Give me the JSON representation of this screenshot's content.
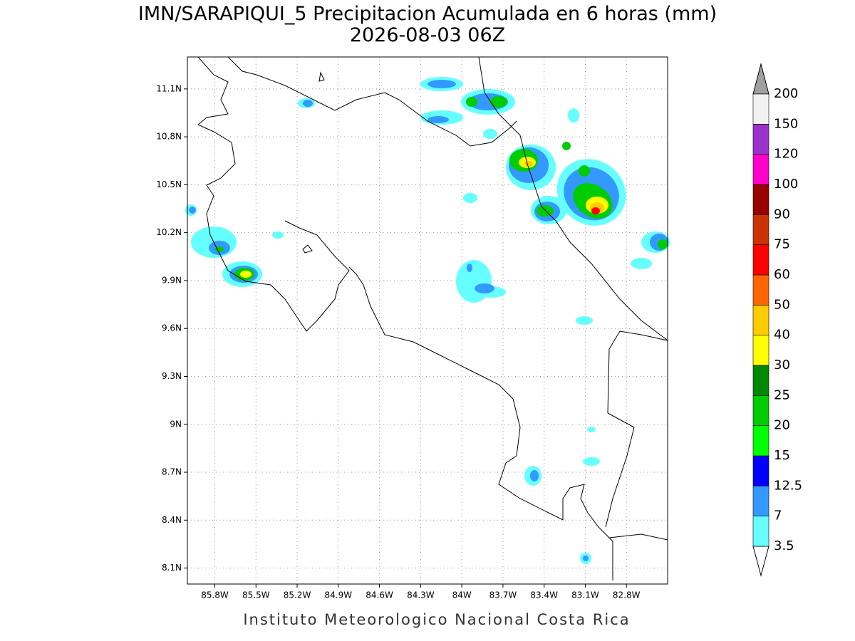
{
  "header": {
    "title": "IMN/SARAPIQUI_5 Precipitacion Acumulada en 6 horas (mm)",
    "subtitle": "2026-08-03 06Z"
  },
  "map": {
    "xlim": [
      -86.0,
      -82.5
    ],
    "ylim": [
      8.0,
      11.3
    ],
    "grid": true,
    "xticks": [
      {
        "value": -85.8,
        "label": "85.8W"
      },
      {
        "value": -85.5,
        "label": "85.5W"
      },
      {
        "value": -85.2,
        "label": "85.2W"
      },
      {
        "value": -84.9,
        "label": "84.9W"
      },
      {
        "value": -84.6,
        "label": "84.6W"
      },
      {
        "value": -84.3,
        "label": "84.3W"
      },
      {
        "value": -84.0,
        "label": "84W"
      },
      {
        "value": -83.7,
        "label": "83.7W"
      },
      {
        "value": -83.4,
        "label": "83.4W"
      },
      {
        "value": -83.1,
        "label": "83.1W"
      },
      {
        "value": -82.8,
        "label": "82.8W"
      }
    ],
    "yticks": [
      {
        "value": 8.1,
        "label": "8.1N"
      },
      {
        "value": 8.4,
        "label": "8.4N"
      },
      {
        "value": 8.7,
        "label": "8.7N"
      },
      {
        "value": 9.0,
        "label": "9N"
      },
      {
        "value": 9.3,
        "label": "9.3N"
      },
      {
        "value": 9.6,
        "label": "9.6N"
      },
      {
        "value": 9.9,
        "label": "9.9N"
      },
      {
        "value": 10.2,
        "label": "10.2N"
      },
      {
        "value": 10.5,
        "label": "10.5N"
      },
      {
        "value": 10.8,
        "label": "10.8N"
      },
      {
        "value": 11.1,
        "label": "11.1N"
      }
    ]
  },
  "colorbar": {
    "levels": [
      3.5,
      7,
      12.5,
      15,
      20,
      25,
      30,
      40,
      50,
      60,
      75,
      90,
      100,
      120,
      150,
      200
    ],
    "colors": [
      "#66ffff",
      "#3399ff",
      "#0000ff",
      "#00ff00",
      "#00cc00",
      "#008800",
      "#ffff00",
      "#ffcc00",
      "#ff6600",
      "#ff0000",
      "#cc3300",
      "#990000",
      "#ff00cc",
      "#9933cc",
      "#f2f2f2"
    ],
    "under_color": "#ffffff",
    "over_color": "#a0a0a0"
  },
  "footer": "Instituto Meteorologico Nacional Costa Rica"
}
